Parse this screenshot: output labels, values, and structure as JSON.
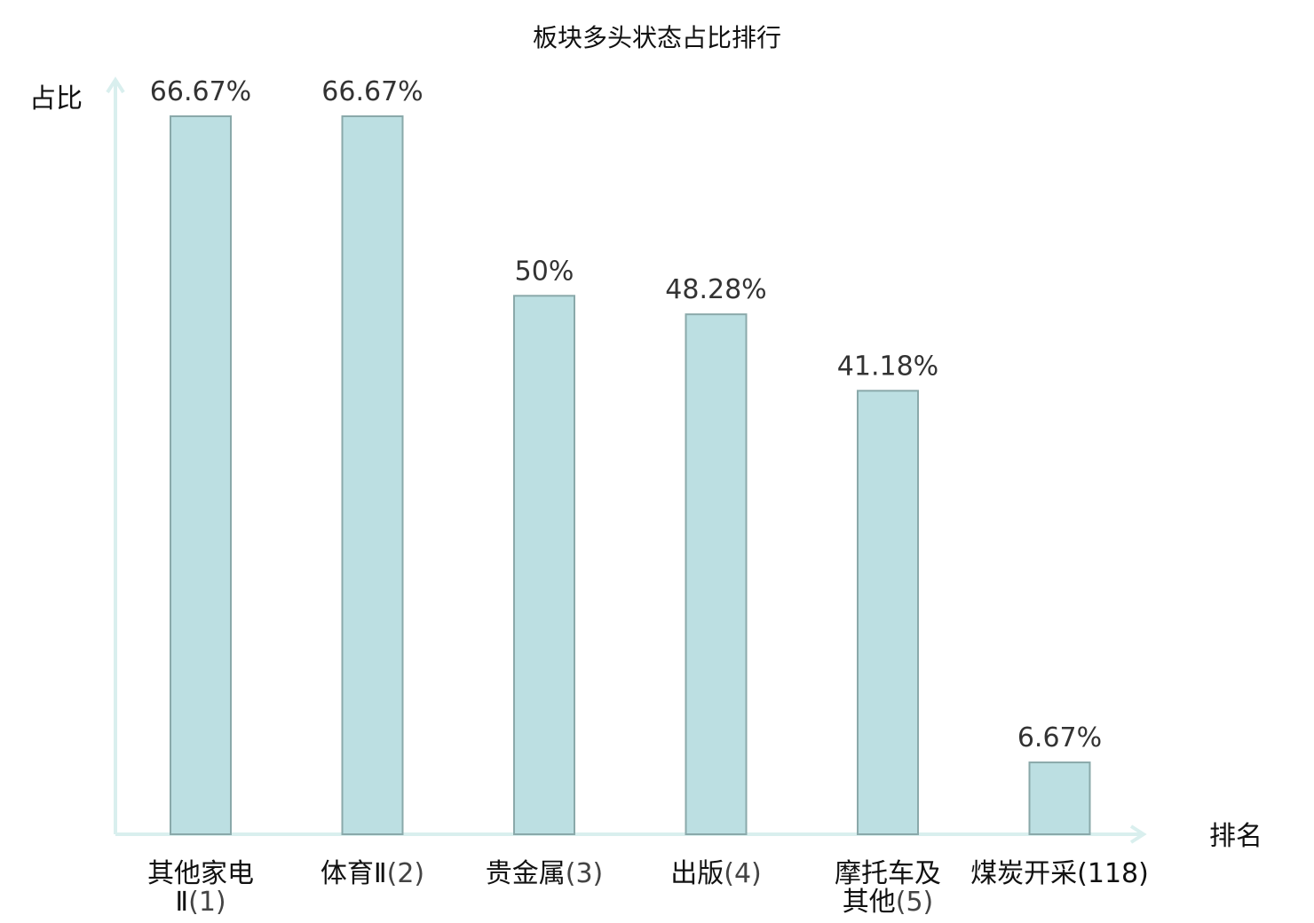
{
  "chart_data": {
    "type": "bar",
    "title": "板块多头状态占比排行",
    "ylabel": "占比",
    "xlabel": "排名",
    "ylim": [
      0,
      70
    ],
    "grid": false,
    "categories": [
      {
        "name_lines": [
          "其他家电",
          "Ⅱ"
        ],
        "rank": "(1)",
        "value": 66.67,
        "label": "66.67%",
        "highlight": false
      },
      {
        "name_lines": [
          "体育Ⅱ"
        ],
        "rank": "(2)",
        "value": 66.67,
        "label": "66.67%",
        "highlight": false
      },
      {
        "name_lines": [
          "贵金属"
        ],
        "rank": "(3)",
        "value": 50,
        "label": "50%",
        "highlight": false
      },
      {
        "name_lines": [
          "出版"
        ],
        "rank": "(4)",
        "value": 48.28,
        "label": "48.28%",
        "highlight": false
      },
      {
        "name_lines": [
          "摩托车及",
          "其他"
        ],
        "rank": "(5)",
        "value": 41.18,
        "label": "41.18%",
        "highlight": false
      },
      {
        "name_lines": [
          "煤炭开采"
        ],
        "rank": "(118)",
        "value": 6.67,
        "label": "6.67%",
        "highlight": true
      }
    ],
    "colors": {
      "bar_fill": "#bcdfe2",
      "bar_stroke": "#8aa9aa",
      "axis": "#d9efee",
      "highlight_text": "#e8151b",
      "value_text": "#333333",
      "label_text": "#111111"
    }
  }
}
